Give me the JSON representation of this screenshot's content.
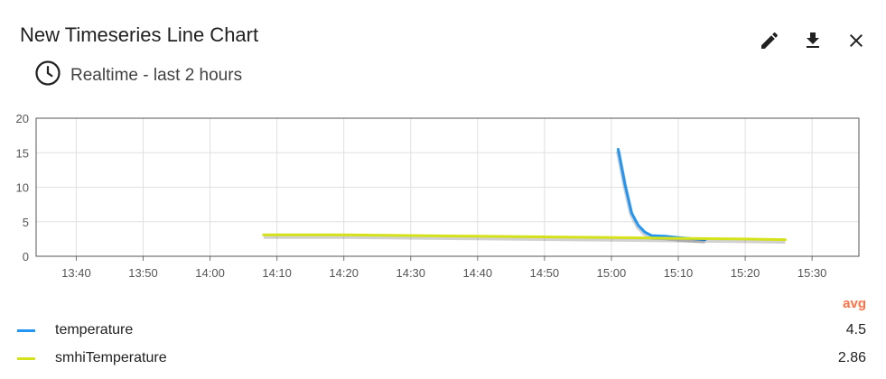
{
  "widget": {
    "title": "New Timeseries Line Chart",
    "timewindow_label": "Realtime - last 2 hours",
    "actions": {
      "edit_icon": "pencil-icon",
      "download_icon": "download-icon",
      "close_icon": "close-icon"
    }
  },
  "legend": {
    "header": "avg",
    "items": [
      {
        "name": "temperature",
        "color": "#2196f3",
        "value": "4.5"
      },
      {
        "name": "smhiTemperature",
        "color": "#d4e21a",
        "value": "2.86"
      }
    ]
  },
  "chart_data": {
    "type": "line",
    "ylim": [
      0,
      20
    ],
    "yticks": [
      "0",
      "5",
      "10",
      "15",
      "20"
    ],
    "xlim": [
      "13:34",
      "15:37"
    ],
    "xticks": [
      "13:40",
      "13:50",
      "14:00",
      "14:10",
      "14:20",
      "14:30",
      "14:40",
      "14:50",
      "15:00",
      "15:10",
      "15:20",
      "15:30"
    ],
    "grid": true,
    "series": [
      {
        "name": "temperature",
        "color": "#2196f3",
        "points": [
          [
            "15:01",
            15.5
          ],
          [
            "15:02",
            10.5
          ],
          [
            "15:03",
            6.3
          ],
          [
            "15:04",
            4.5
          ],
          [
            "15:05",
            3.5
          ],
          [
            "15:06",
            3.0
          ],
          [
            "15:08",
            2.9
          ],
          [
            "15:10",
            2.7
          ],
          [
            "15:14",
            2.4
          ]
        ]
      },
      {
        "name": "smhiTemperature",
        "color": "#d4e21a",
        "points": [
          [
            "14:08",
            3.1
          ],
          [
            "14:20",
            3.1
          ],
          [
            "14:40",
            2.9
          ],
          [
            "15:00",
            2.7
          ],
          [
            "15:10",
            2.6
          ],
          [
            "15:20",
            2.5
          ],
          [
            "15:26",
            2.4
          ]
        ]
      }
    ]
  }
}
